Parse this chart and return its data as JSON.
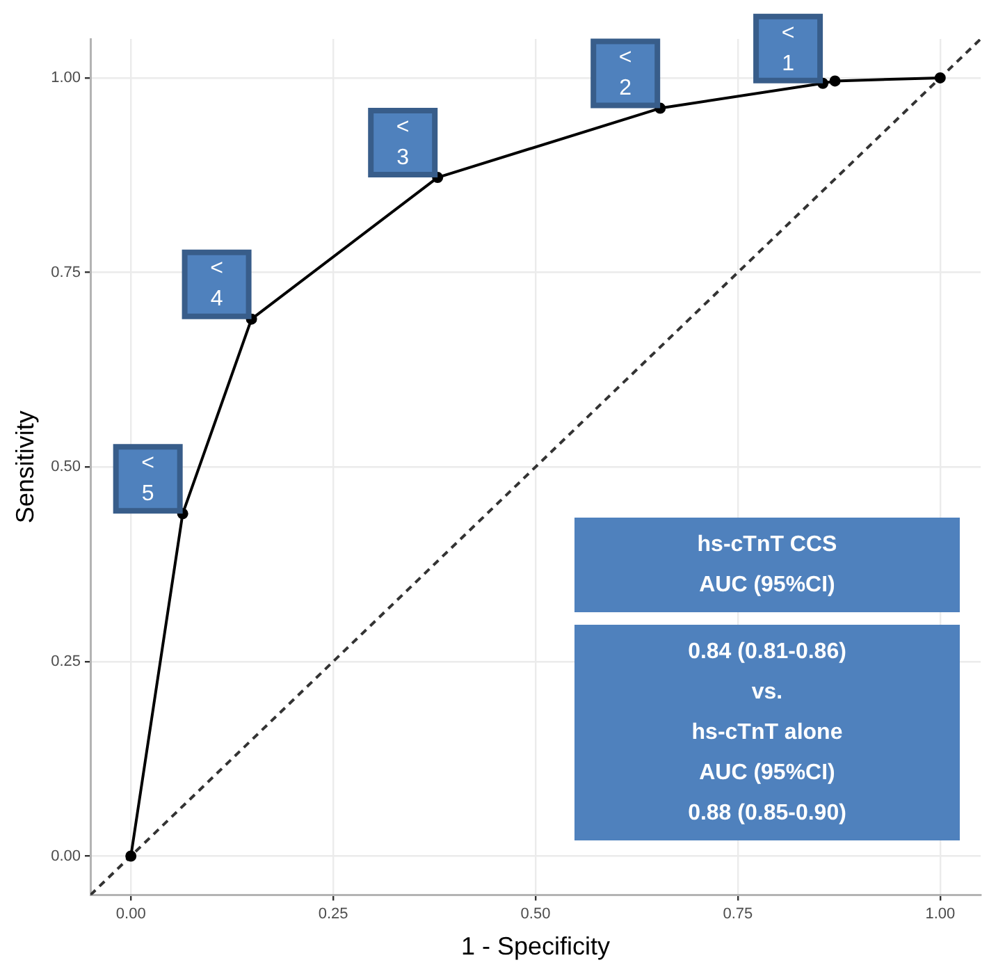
{
  "chart_data": {
    "type": "line",
    "xlabel": "1 - Specificity",
    "ylabel": "Sensitivity",
    "xlim": [
      -0.05,
      1.05
    ],
    "ylim": [
      -0.05,
      1.05
    ],
    "xticks": [
      {
        "value": 0,
        "label": "0.00"
      },
      {
        "value": 0.25,
        "label": "0.25"
      },
      {
        "value": 0.5,
        "label": "0.50"
      },
      {
        "value": 0.75,
        "label": "0.75"
      },
      {
        "value": 1,
        "label": "1.00"
      }
    ],
    "yticks": [
      {
        "value": 0,
        "label": "0.00"
      },
      {
        "value": 0.25,
        "label": "0.25"
      },
      {
        "value": 0.5,
        "label": "0.50"
      },
      {
        "value": 0.75,
        "label": "0.75"
      },
      {
        "value": 1,
        "label": "1.00"
      }
    ],
    "grid": true,
    "legend": false,
    "series": [
      {
        "color": "#000000",
        "marker": "circle",
        "line_style": "solid",
        "x": [
          0,
          0.064,
          0.149,
          0.379,
          0.654,
          0.855,
          0.87,
          1
        ],
        "values": [
          0,
          0.44,
          0.69,
          0.872,
          0.961,
          0.993,
          0.996,
          1
        ]
      },
      {
        "color": "#333333",
        "marker": "none",
        "line_style": "dashed",
        "x": [
          -0.05,
          1.05
        ],
        "values": [
          -0.05,
          1.05
        ]
      }
    ],
    "annotations": [
      {
        "text": "<\n5",
        "x": 0.064,
        "y": 0.44
      },
      {
        "text": "<\n4",
        "x": 0.149,
        "y": 0.69
      },
      {
        "text": "<\n3",
        "x": 0.379,
        "y": 0.872
      },
      {
        "text": "<\n2",
        "x": 0.654,
        "y": 0.961
      },
      {
        "text": "<\n1",
        "x": 0.855,
        "y": 0.993
      },
      "hs-cTnT CCS\nAUC (95%CI)",
      "0.84 (0.81-0.86)\nvs.\nhs-cTnT alone\nAUC (95%CI)\n0.88 (0.85-0.90)"
    ]
  }
}
